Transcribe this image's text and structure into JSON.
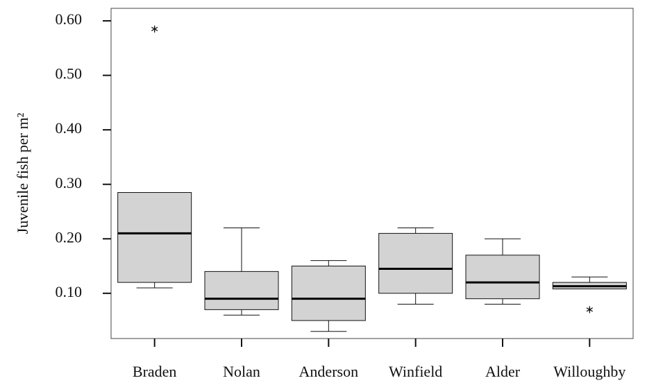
{
  "chart_data": {
    "type": "box",
    "y_label": "Juvenile fish per m²",
    "categories": [
      "Braden",
      "Nolan",
      "Anderson",
      "Winfield",
      "Alder",
      "Willoughby"
    ],
    "min": [
      0.11,
      0.06,
      0.03,
      0.08,
      0.08,
      0.108
    ],
    "q1": [
      0.12,
      0.07,
      0.05,
      0.1,
      0.09,
      0.108
    ],
    "median": [
      0.21,
      0.09,
      0.09,
      0.145,
      0.12,
      0.113
    ],
    "q3": [
      0.285,
      0.14,
      0.15,
      0.21,
      0.17,
      0.12
    ],
    "max": [
      0.285,
      0.22,
      0.16,
      0.22,
      0.2,
      0.13
    ],
    "outliers": [
      [
        0.585
      ],
      [],
      [],
      [],
      [],
      [
        0.07
      ]
    ],
    "color": "#d3d3d3",
    "ylim": [
      0.017,
      0.623
    ],
    "yticks": [
      {
        "value": 0.1,
        "label": "0.10"
      },
      {
        "value": 0.2,
        "label": "0.20"
      },
      {
        "value": 0.3,
        "label": "0.30"
      },
      {
        "value": 0.4,
        "label": "0.40"
      },
      {
        "value": 0.5,
        "label": "0.50"
      },
      {
        "value": 0.6,
        "label": "0.60"
      }
    ]
  }
}
